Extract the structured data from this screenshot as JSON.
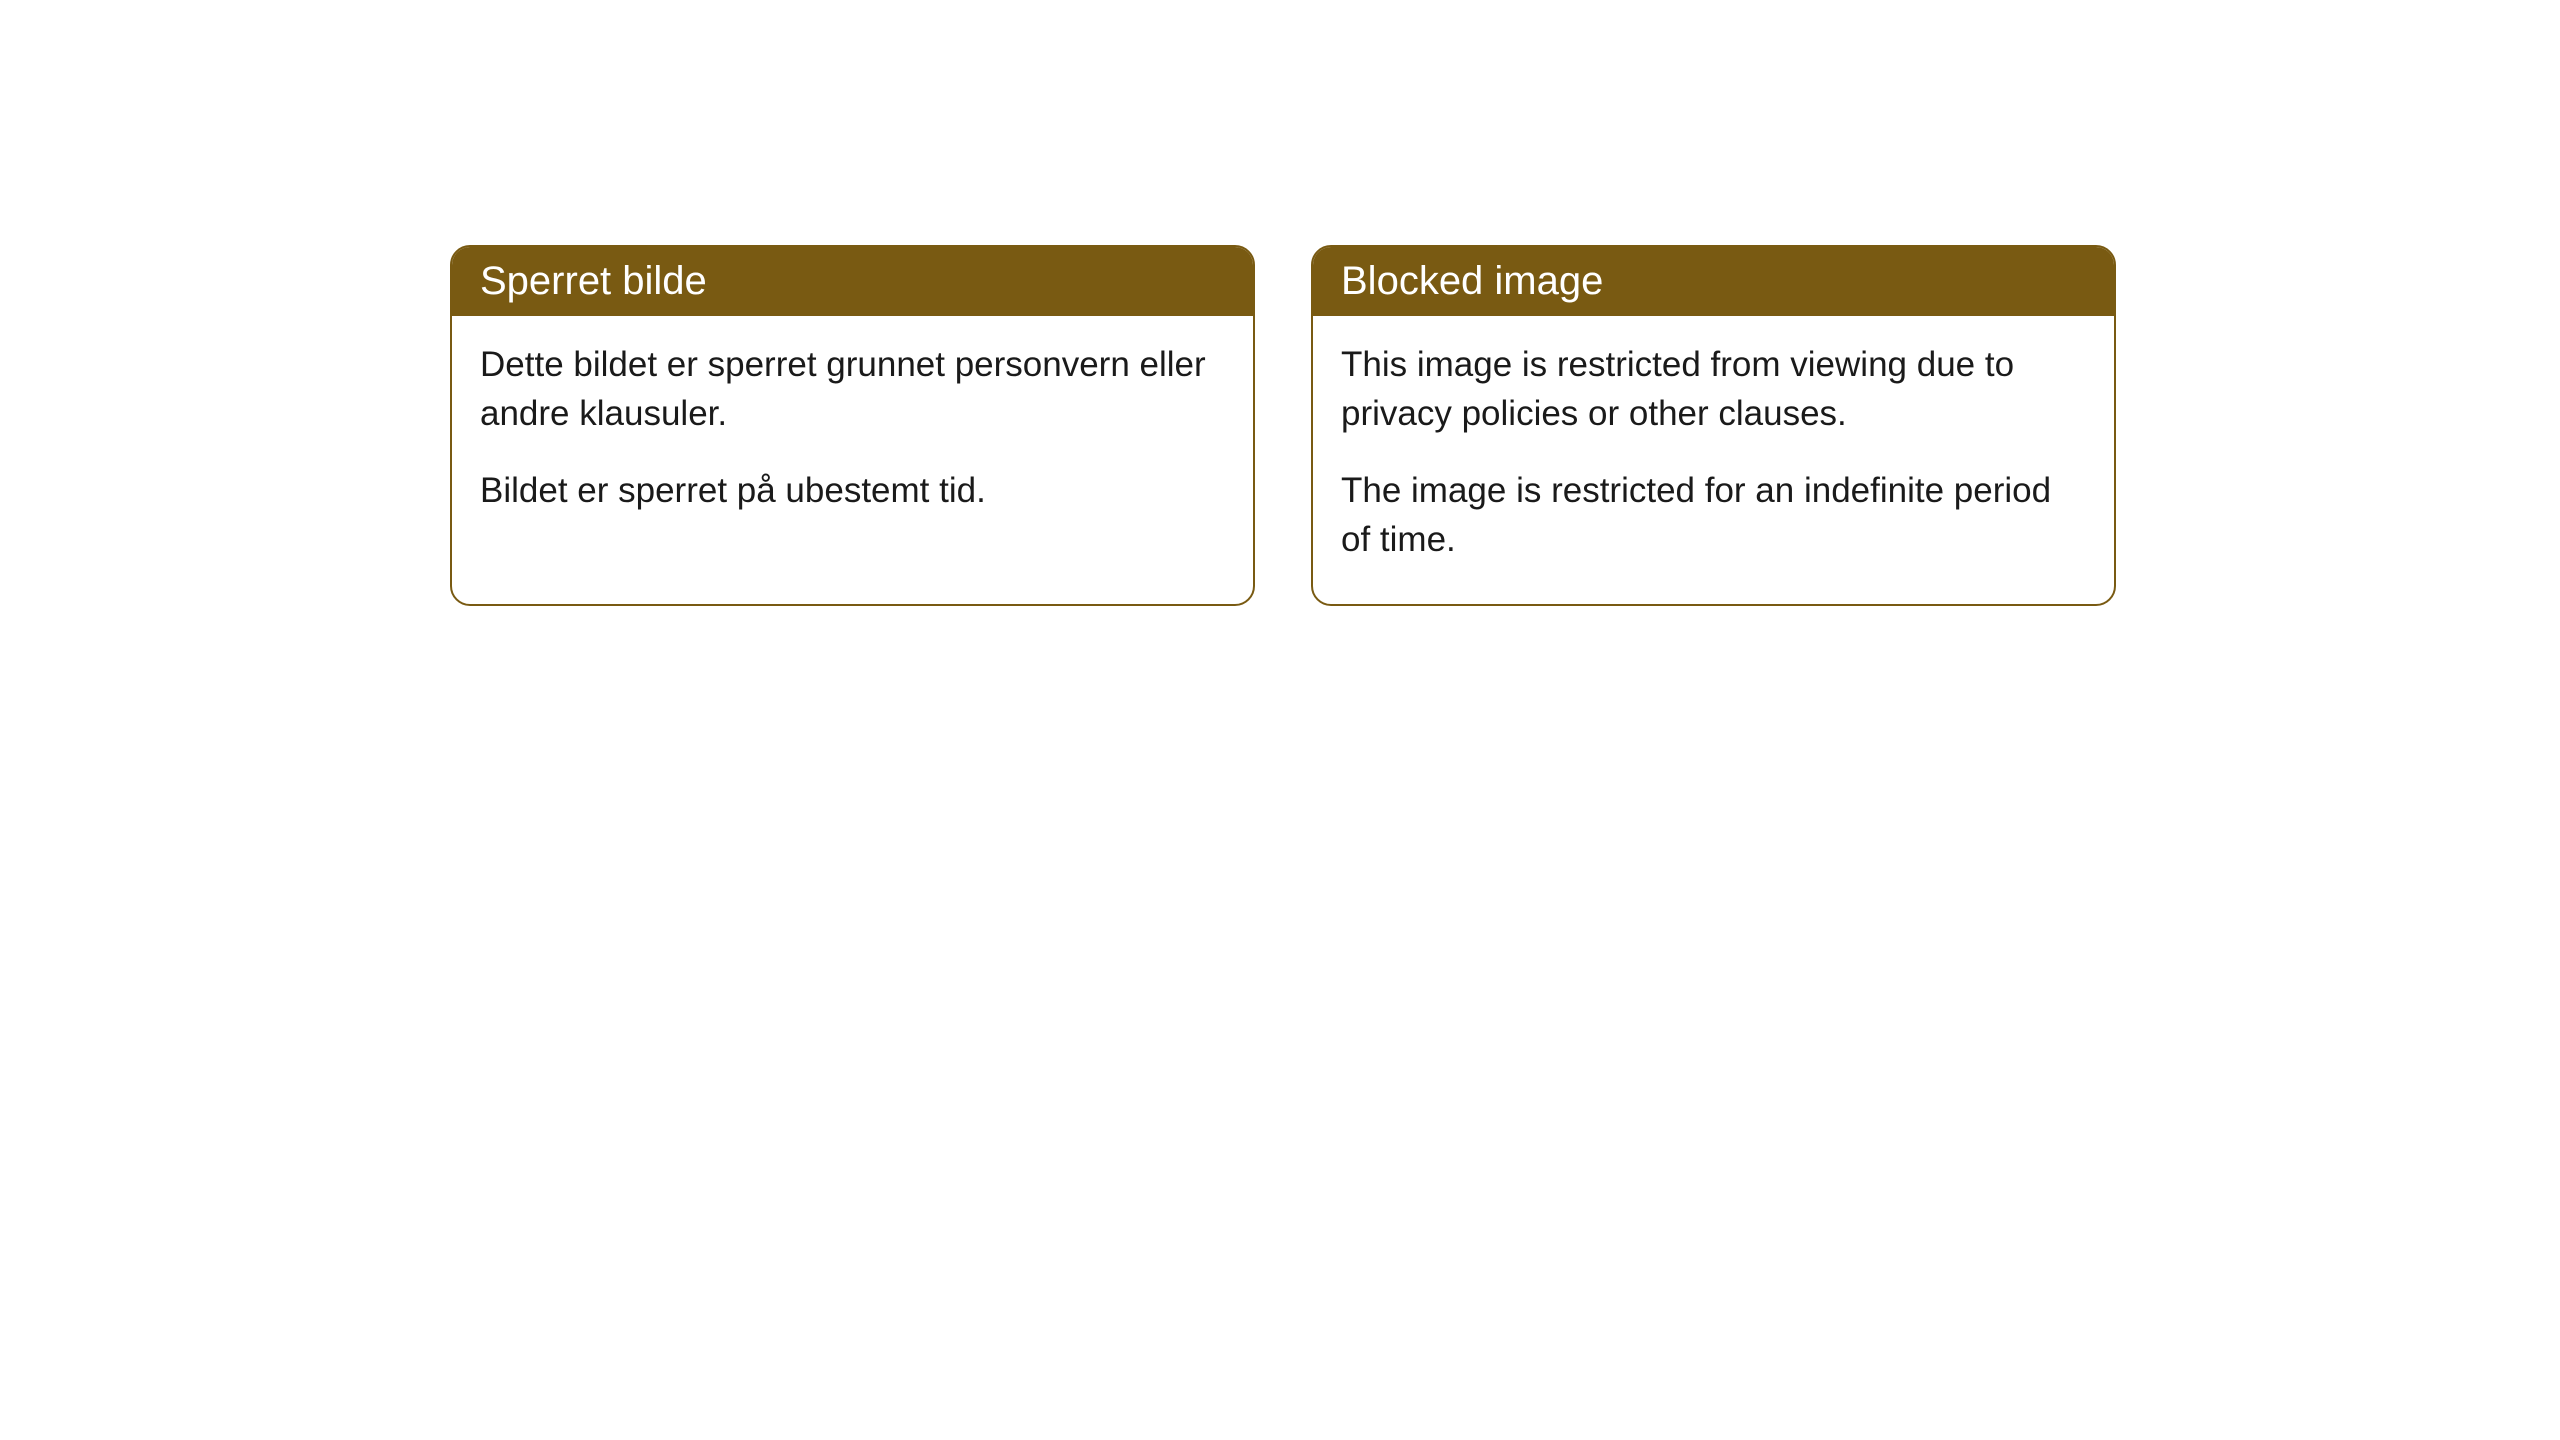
{
  "cards": [
    {
      "header": "Sperret bilde",
      "paragraph1": "Dette bildet er sperret grunnet personvern eller andre klausuler.",
      "paragraph2": "Bildet er sperret på ubestemt tid."
    },
    {
      "header": "Blocked image",
      "paragraph1": "This image is restricted from viewing due to privacy policies or other clauses.",
      "paragraph2": "The image is restricted for an indefinite period of time."
    }
  ],
  "styling": {
    "header_bg_color": "#795a12",
    "header_text_color": "#ffffff",
    "border_color": "#795a12",
    "body_text_color": "#1a1a1a",
    "card_bg_color": "#ffffff",
    "page_bg_color": "#ffffff",
    "border_radius": 20,
    "header_fontsize": 40,
    "body_fontsize": 35
  }
}
